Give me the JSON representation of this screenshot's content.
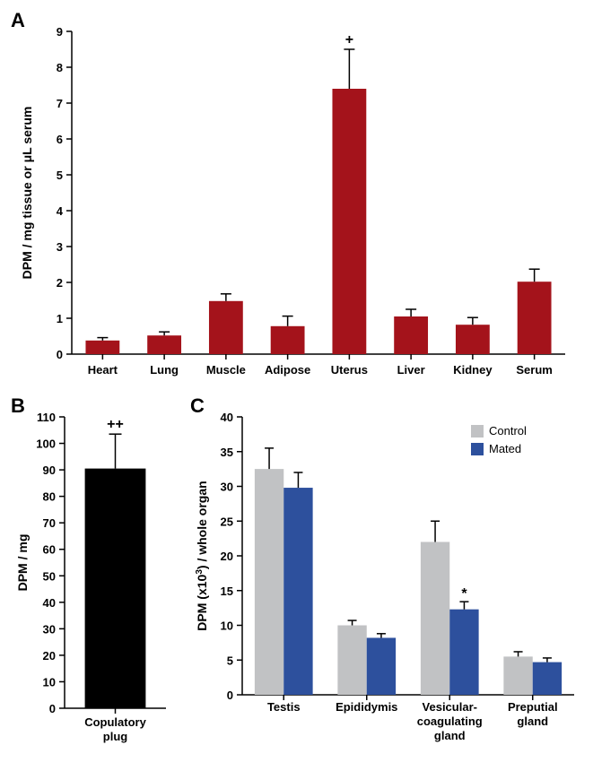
{
  "panelA": {
    "label": "A",
    "type": "bar",
    "ylabel": "DPM / mg  tissue or μL serum",
    "ylim": [
      0,
      9
    ],
    "ytick_step": 1,
    "categories": [
      "Heart",
      "Lung",
      "Muscle",
      "Adipose",
      "Uterus",
      "Liver",
      "Kidney",
      "Serum"
    ],
    "values": [
      0.38,
      0.52,
      1.48,
      0.78,
      7.4,
      1.05,
      0.82,
      2.02
    ],
    "errors": [
      0.08,
      0.1,
      0.2,
      0.28,
      1.1,
      0.2,
      0.2,
      0.35
    ],
    "bar_color": "#a4131b",
    "annotations": {
      "Uterus": "+"
    },
    "label_fontsize": 14,
    "tick_fontsize": 13,
    "background_color": "#ffffff",
    "axis_color": "#000000",
    "bar_width_ratio": 0.55
  },
  "panelB": {
    "label": "B",
    "type": "bar",
    "ylabel": "DPM / mg",
    "ylim": [
      0,
      110
    ],
    "ytick_step": 10,
    "categories": [
      "Copulatory plug"
    ],
    "values": [
      90.5
    ],
    "errors": [
      13.0
    ],
    "bar_color": "#000000",
    "annotations": {
      "Copulatory plug": "++"
    },
    "label_fontsize": 14,
    "tick_fontsize": 13,
    "background_color": "#ffffff",
    "axis_color": "#000000",
    "bar_width_ratio": 0.6
  },
  "panelC": {
    "label": "C",
    "type": "grouped_bar",
    "ylabel": "DPM (x10³) / whole organ",
    "ylabel_html": "DPM (x10<sup>3</sup>) / whole organ",
    "ylim": [
      0,
      40
    ],
    "ytick_step": 5,
    "categories": [
      "Testis",
      "Epididymis",
      "Vesicular-coagulating gland",
      "Preputial gland"
    ],
    "series": [
      {
        "name": "Control",
        "color": "#c1c2c4",
        "values": [
          32.5,
          10.0,
          22.0,
          5.5
        ],
        "errors": [
          3.0,
          0.7,
          3.0,
          0.7
        ]
      },
      {
        "name": "Mated",
        "color": "#2d509d",
        "values": [
          29.8,
          8.2,
          12.3,
          4.7
        ],
        "errors": [
          2.2,
          0.6,
          1.1,
          0.6
        ]
      }
    ],
    "annotations": {
      "Vesicular-coagulating gland:Mated": "*"
    },
    "legend": {
      "positions": [
        "Control",
        "Mated"
      ]
    },
    "label_fontsize": 14,
    "tick_fontsize": 13,
    "background_color": "#ffffff",
    "axis_color": "#000000",
    "bar_width_ratio": 0.35
  }
}
